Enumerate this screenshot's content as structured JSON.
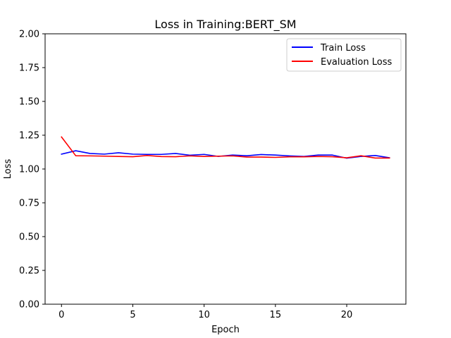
{
  "chart_data": {
    "type": "line",
    "title": "Loss in Training:BERT_SM",
    "xlabel": "Epoch",
    "ylabel": "Loss",
    "xlim": [
      -1.15,
      24.15
    ],
    "ylim": [
      0,
      2
    ],
    "xticks": [
      0,
      5,
      10,
      15,
      20
    ],
    "yticks": [
      0.0,
      0.25,
      0.5,
      0.75,
      1.0,
      1.25,
      1.5,
      1.75,
      2.0
    ],
    "xtick_labels": [
      "0",
      "5",
      "10",
      "15",
      "20"
    ],
    "ytick_labels": [
      "0.00",
      "0.25",
      "0.50",
      "0.75",
      "1.00",
      "1.25",
      "1.50",
      "1.75",
      "2.00"
    ],
    "grid": false,
    "legend": "top-right",
    "x": [
      0,
      1,
      2,
      3,
      4,
      5,
      6,
      7,
      8,
      9,
      10,
      11,
      12,
      13,
      14,
      15,
      16,
      17,
      18,
      19,
      20,
      21,
      22,
      23
    ],
    "series": [
      {
        "name": "Train Loss",
        "color": "#0000ff",
        "values": [
          1.11,
          1.135,
          1.115,
          1.11,
          1.12,
          1.11,
          1.108,
          1.108,
          1.115,
          1.102,
          1.108,
          1.093,
          1.103,
          1.098,
          1.107,
          1.103,
          1.097,
          1.093,
          1.103,
          1.103,
          1.08,
          1.093,
          1.1,
          1.083
        ]
      },
      {
        "name": "Evaluation Loss",
        "color": "#ff0000",
        "values": [
          1.237,
          1.098,
          1.097,
          1.095,
          1.093,
          1.091,
          1.1,
          1.092,
          1.091,
          1.097,
          1.093,
          1.095,
          1.097,
          1.088,
          1.088,
          1.086,
          1.09,
          1.09,
          1.093,
          1.091,
          1.083,
          1.098,
          1.081,
          1.081
        ]
      }
    ]
  }
}
